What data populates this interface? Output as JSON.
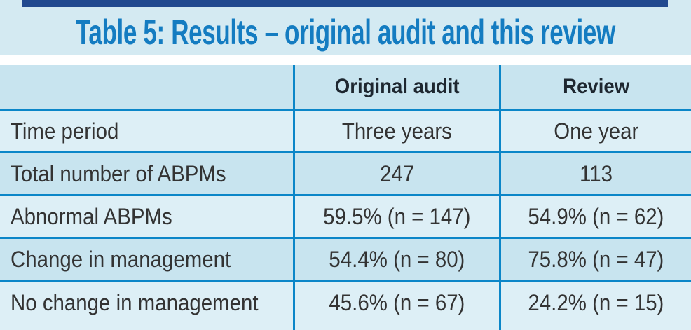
{
  "title": "Table 5: Results – original audit and this review",
  "table": {
    "columns": {
      "original": "Original audit",
      "review": "Review"
    },
    "rows": [
      {
        "label": "Time period",
        "original": "Three years",
        "review": "One year"
      },
      {
        "label": "Total number of ABPMs",
        "original": "247",
        "review": "113"
      },
      {
        "label": "Abnormal ABPMs",
        "original": "59.5% (n = 147)",
        "review": "54.9% (n = 62)"
      },
      {
        "label": "Change in management",
        "original": "54.4% (n = 80)",
        "review": "75.8% (n = 47)"
      },
      {
        "label": "No change in management",
        "original": "45.6% (n = 67)",
        "review": "24.2% (n = 15)"
      }
    ]
  },
  "colors": {
    "top_bar": "#21498f",
    "title_text": "#147cc1",
    "band_background": "#d4eaf2",
    "border_lines": "#0b86c8",
    "row_dark": "#c8e4ef",
    "row_light": "#ddeff6",
    "cell_text": "#333333",
    "header_text": "#1e2730"
  }
}
